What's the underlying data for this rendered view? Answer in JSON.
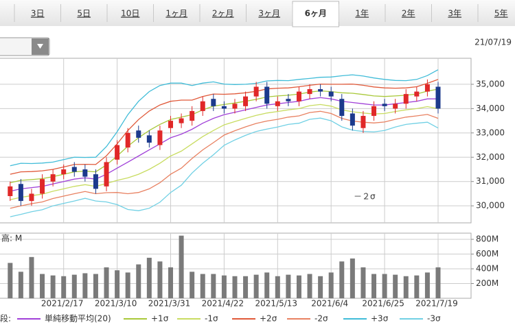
{
  "tabs": [
    "3日",
    "5日",
    "10日",
    "1ヶ月",
    "2ヶ月",
    "3ヶ月",
    "6ヶ月",
    "1年",
    "2年",
    "3年",
    "5年"
  ],
  "selected_tab": 6,
  "date": "21/07/19",
  "chart_data": [
    {
      "type": "candlestick",
      "ylim": [
        29300,
        36070
      ],
      "yticks": [
        {
          "value": 30000,
          "label": "30,000"
        },
        {
          "value": 31000,
          "label": "31,000"
        },
        {
          "value": 32000,
          "label": "32,000"
        },
        {
          "value": 33000,
          "label": "33,000"
        },
        {
          "value": 34000,
          "label": "34,000"
        },
        {
          "value": 35000,
          "label": "35,000"
        }
      ],
      "grid": true,
      "up_color": "#e02828",
      "down_color": "#1c3a8c",
      "open": [
        30400,
        30900,
        30200,
        30500,
        31000,
        31300,
        31600,
        31500,
        31300,
        30800,
        31900,
        32400,
        33100,
        32900,
        32500,
        33200,
        33400,
        33500,
        33900,
        34400,
        34100,
        34000,
        34100,
        34500,
        34900,
        34100,
        34400,
        34300,
        34600,
        34800,
        34700,
        34400,
        33800,
        33200,
        33700,
        34200,
        34000,
        34200,
        34500,
        34700,
        34900
      ],
      "high": [
        31000,
        31100,
        30700,
        31300,
        31500,
        31700,
        31800,
        31700,
        31500,
        32000,
        32700,
        33200,
        33300,
        33100,
        33300,
        33700,
        33800,
        34100,
        34500,
        34600,
        34300,
        34400,
        34700,
        35100,
        35100,
        34500,
        34600,
        34900,
        35000,
        35000,
        34900,
        34600,
        34000,
        33900,
        34300,
        34400,
        34400,
        34800,
        34900,
        35200,
        35100
      ],
      "low": [
        30200,
        30000,
        30000,
        30300,
        30800,
        31100,
        31200,
        31000,
        30500,
        30600,
        31700,
        32200,
        32600,
        32400,
        32300,
        33000,
        33200,
        33300,
        33700,
        33900,
        33800,
        33800,
        33900,
        34300,
        34000,
        33900,
        34100,
        34100,
        34400,
        34500,
        34300,
        33500,
        33100,
        33000,
        33500,
        33900,
        33800,
        34000,
        34300,
        34500,
        33800
      ],
      "close": [
        30800,
        30200,
        30500,
        31100,
        31300,
        31500,
        31400,
        31200,
        30700,
        31800,
        32500,
        33000,
        32800,
        32600,
        33100,
        33500,
        33600,
        33900,
        34300,
        34100,
        34000,
        34200,
        34500,
        34900,
        34200,
        34300,
        34300,
        34700,
        34800,
        34700,
        34500,
        33700,
        33300,
        33700,
        34100,
        34100,
        34200,
        34600,
        34700,
        35000,
        34000
      ],
      "series": [
        {
          "name": "単純移動平均(20)",
          "color": "#a040d8",
          "values": [
            30600,
            30700,
            30750,
            30800,
            30900,
            31000,
            31100,
            31150,
            31100,
            31300,
            31550,
            31800,
            32050,
            32300,
            32550,
            32800,
            32950,
            33150,
            33400,
            33600,
            33750,
            33850,
            33950,
            34050,
            34150,
            34200,
            34250,
            34300,
            34400,
            34450,
            34400,
            34300,
            34250,
            34200,
            34150,
            34150,
            34200,
            34250,
            34300,
            34400,
            34400
          ]
        },
        {
          "name": "+1σ",
          "color": "#a8c838",
          "values": [
            30950,
            31050,
            31080,
            31120,
            31200,
            31300,
            31400,
            31430,
            31400,
            31680,
            32050,
            32450,
            32800,
            33100,
            33350,
            33550,
            33650,
            33750,
            33950,
            34100,
            34170,
            34230,
            34300,
            34380,
            34480,
            34520,
            34550,
            34600,
            34680,
            34730,
            34700,
            34650,
            34630,
            34580,
            34520,
            34500,
            34520,
            34550,
            34600,
            34720,
            34800
          ]
        },
        {
          "name": "-1σ",
          "color": "#c8dc60",
          "values": [
            30250,
            30350,
            30420,
            30480,
            30600,
            30700,
            30800,
            30870,
            30800,
            30920,
            31050,
            31150,
            31300,
            31500,
            31750,
            32050,
            32250,
            32550,
            32850,
            33100,
            33330,
            33470,
            33600,
            33720,
            33820,
            33880,
            33950,
            34000,
            34120,
            34170,
            34100,
            33950,
            33870,
            33820,
            33780,
            33800,
            33880,
            33950,
            34000,
            34080,
            34000
          ]
        },
        {
          "name": "+2σ",
          "color": "#e05838",
          "values": [
            31300,
            31400,
            31410,
            31440,
            31500,
            31600,
            31700,
            31710,
            31700,
            32060,
            32550,
            33100,
            33550,
            33900,
            34150,
            34300,
            34350,
            34350,
            34500,
            34600,
            34590,
            34610,
            34650,
            34710,
            34810,
            34840,
            34850,
            34900,
            34960,
            35010,
            35000,
            35000,
            35010,
            34960,
            34890,
            34850,
            34840,
            34850,
            34900,
            35040,
            35200
          ]
        },
        {
          "name": "-2σ",
          "color": "#e88060",
          "values": [
            29900,
            30000,
            30090,
            30160,
            30300,
            30400,
            30500,
            30590,
            30500,
            30540,
            30550,
            30500,
            30550,
            30700,
            30950,
            31300,
            31550,
            31950,
            32300,
            32600,
            32910,
            33090,
            33250,
            33390,
            33490,
            33560,
            33650,
            33700,
            33840,
            33890,
            33800,
            33600,
            33490,
            33440,
            33410,
            33450,
            33560,
            33650,
            33700,
            33760,
            33600
          ]
        },
        {
          "name": "+3σ",
          "color": "#40bcd8",
          "values": [
            31650,
            31750,
            31740,
            31760,
            31800,
            31900,
            32000,
            31990,
            32000,
            32440,
            33050,
            33750,
            34300,
            34700,
            34950,
            35050,
            35050,
            34950,
            35050,
            35100,
            35010,
            34990,
            35000,
            35040,
            35140,
            35160,
            35150,
            35200,
            35240,
            35290,
            35300,
            35350,
            35390,
            35340,
            35260,
            35200,
            35160,
            35150,
            35200,
            35360,
            35600
          ]
        },
        {
          "name": "-3σ",
          "color": "#70d0e4",
          "values": [
            29550,
            29650,
            29760,
            29840,
            30000,
            30100,
            30200,
            30310,
            30200,
            30160,
            30050,
            29850,
            29800,
            29900,
            30150,
            30550,
            30850,
            31350,
            31750,
            32100,
            32490,
            32710,
            32900,
            33060,
            33160,
            33240,
            33350,
            33400,
            33560,
            33610,
            33500,
            33250,
            33110,
            33060,
            33040,
            33100,
            33240,
            33350,
            33400,
            33440,
            33200
          ]
        }
      ],
      "legend_title": "段:",
      "annotation": "－２σ",
      "annotation_color": "#6a9c30"
    },
    {
      "type": "bar",
      "title": "高: M",
      "color": "#7a7a7a",
      "ylim": [
        0,
        884
      ],
      "yticks": [
        {
          "value": 200,
          "label": "200M"
        },
        {
          "value": 400,
          "label": "400M"
        },
        {
          "value": 600,
          "label": "600M"
        },
        {
          "value": 800,
          "label": "800M"
        }
      ],
      "categories": [
        null,
        null,
        null,
        null,
        null,
        "2021/2/17",
        null,
        null,
        null,
        null,
        "2021/3/10",
        null,
        null,
        null,
        null,
        "2021/3/31",
        null,
        null,
        null,
        null,
        "2021/4/22",
        null,
        null,
        null,
        null,
        "2021/5/13",
        null,
        null,
        null,
        null,
        "2021/6/4",
        null,
        null,
        null,
        null,
        "2021/6/25",
        null,
        null,
        null,
        null,
        "2021/7/19"
      ],
      "values": [
        480,
        360,
        560,
        330,
        310,
        300,
        320,
        340,
        330,
        420,
        380,
        350,
        460,
        550,
        500,
        420,
        850,
        360,
        330,
        330,
        310,
        300,
        300,
        320,
        350,
        300,
        320,
        310,
        330,
        300,
        350,
        500,
        540,
        420,
        330,
        330,
        320,
        300,
        310,
        350,
        420
      ]
    }
  ]
}
